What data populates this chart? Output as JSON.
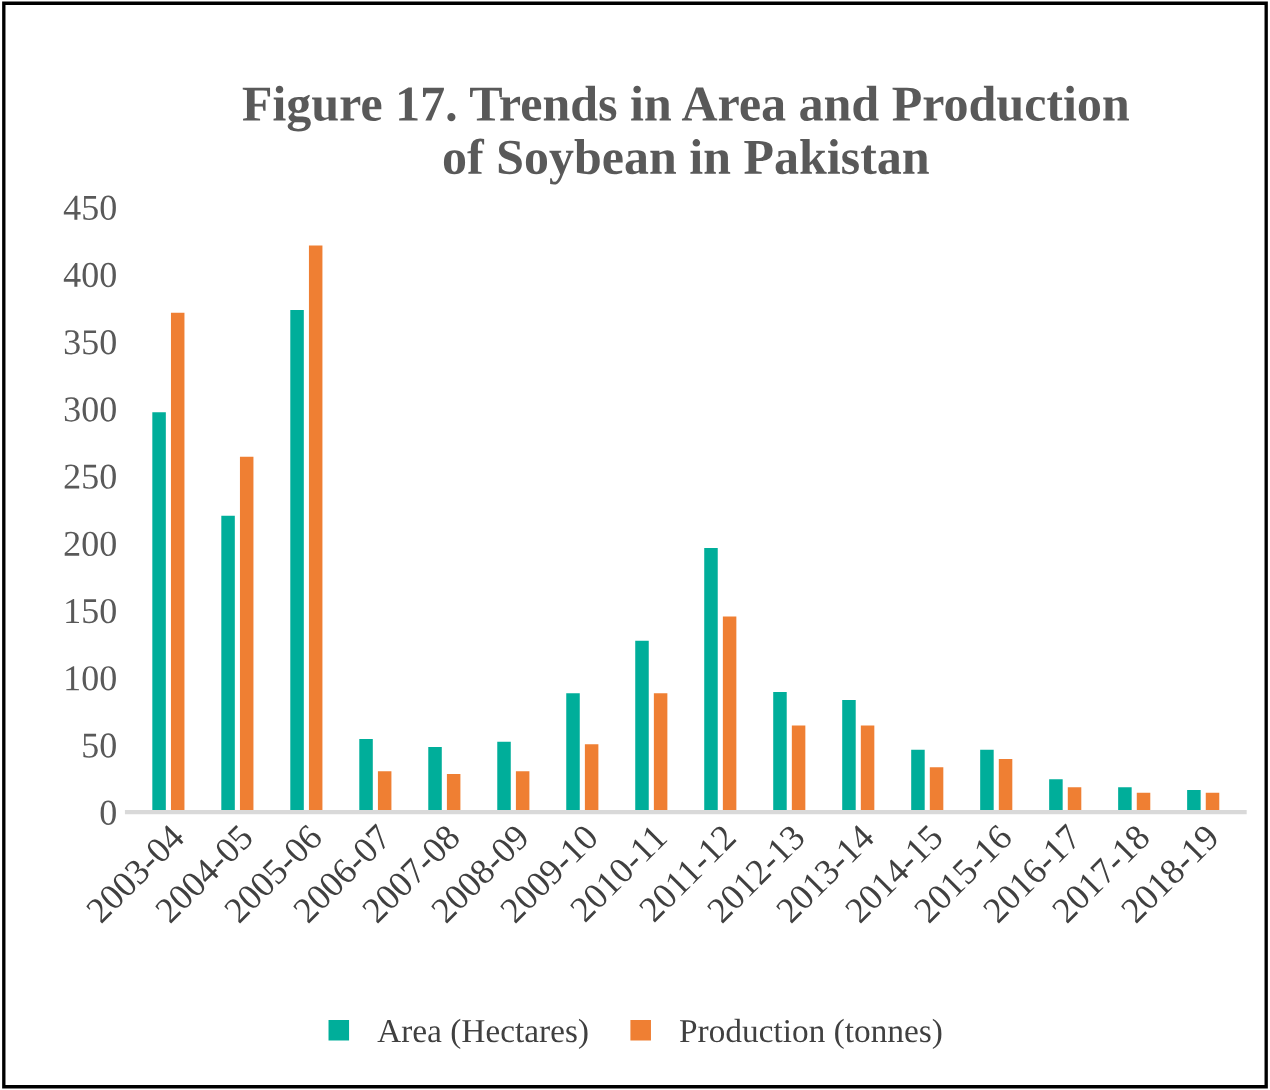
{
  "chart_data": {
    "type": "bar",
    "title": "Figure 17. Trends in Area and Production\nof Soybean in Pakistan",
    "categories": [
      "2003-04",
      "2004-05",
      "2005-06",
      "2006-07",
      "2007-08",
      "2008-09",
      "2009-10",
      "2010-11",
      "2011-12",
      "2012-13",
      "2013-14",
      "2014-15",
      "2015-16",
      "2016-17",
      "2017-18",
      "2018-19"
    ],
    "series": [
      {
        "name": "Area (Hectares)",
        "color": "#00ae9a",
        "values": [
          298,
          221,
          374,
          55,
          49,
          53,
          89,
          128,
          197,
          90,
          84,
          47,
          47,
          25,
          19,
          17
        ]
      },
      {
        "name": "Production (tonnes)",
        "color": "#ef7f33",
        "values": [
          372,
          265,
          422,
          31,
          29,
          31,
          51,
          89,
          146,
          65,
          65,
          34,
          40,
          19,
          15,
          15
        ]
      }
    ],
    "ylim": [
      0,
      450
    ],
    "yticks": [
      0,
      50,
      100,
      150,
      200,
      250,
      300,
      350,
      400,
      450
    ],
    "grid": false,
    "legend": "bottom"
  }
}
